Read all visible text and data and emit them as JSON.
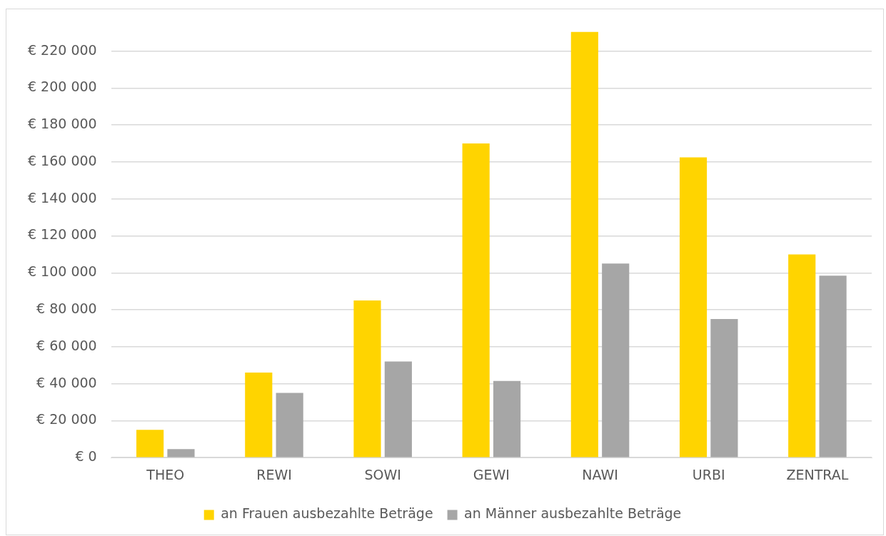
{
  "chart_data": {
    "type": "bar",
    "categories": [
      "THEO",
      "REWI",
      "SOWI",
      "GEWI",
      "NAWI",
      "URBI",
      "ZENTRAL"
    ],
    "series": [
      {
        "name": "an Frauen ausbezahlte Beträge",
        "color": "#ffd400",
        "values": [
          15000,
          46000,
          85000,
          170000,
          230500,
          162500,
          110000
        ]
      },
      {
        "name": "an Männer ausbezahlte Beträge",
        "color": "#a6a6a6",
        "values": [
          4600,
          35000,
          52000,
          41500,
          105000,
          75000,
          98500
        ]
      }
    ],
    "yticks": [
      {
        "value": 0,
        "label": "€ 0"
      },
      {
        "value": 20000,
        "label": "€ 20 000"
      },
      {
        "value": 40000,
        "label": "€ 40 000"
      },
      {
        "value": 60000,
        "label": "€ 60 000"
      },
      {
        "value": 80000,
        "label": "€ 80 000"
      },
      {
        "value": 100000,
        "label": "€ 100 000"
      },
      {
        "value": 120000,
        "label": "€ 120 000"
      },
      {
        "value": 140000,
        "label": "€ 140 000"
      },
      {
        "value": 160000,
        "label": "€ 160 000"
      },
      {
        "value": 180000,
        "label": "€ 180 000"
      },
      {
        "value": 200000,
        "label": "€ 200 000"
      },
      {
        "value": 220000,
        "label": "€ 220 000"
      }
    ],
    "ylim": [
      0,
      230500
    ],
    "grid": "y",
    "legend": "bottom"
  }
}
